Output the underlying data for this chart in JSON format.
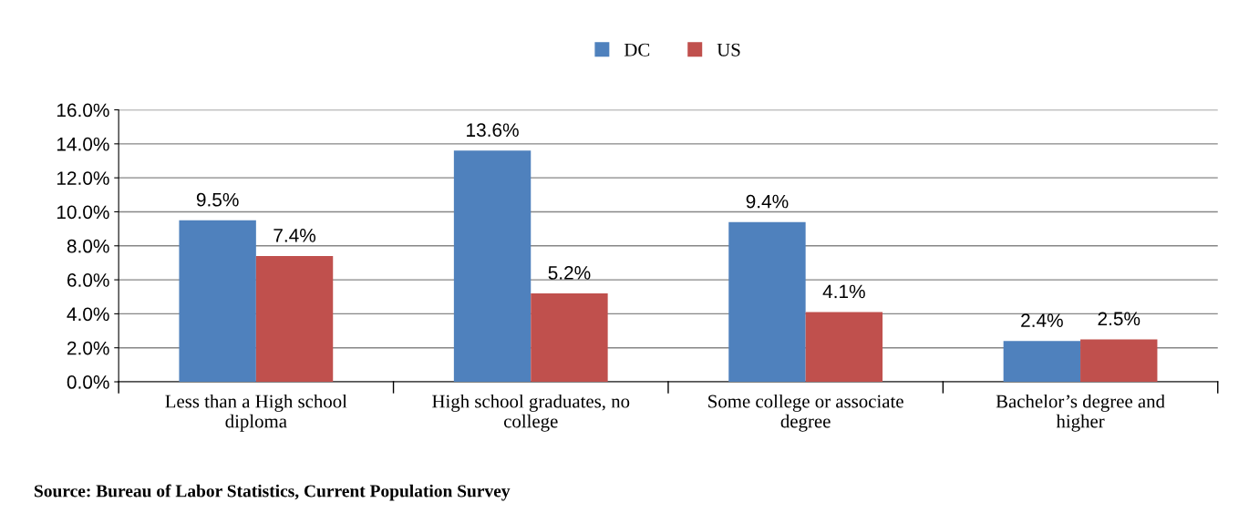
{
  "chart_data": {
    "type": "bar",
    "categories": [
      "Less than a High school diploma",
      "High school graduates, no college",
      "Some college or associate degree",
      "Bachelor’s degree and higher"
    ],
    "series": [
      {
        "name": "DC",
        "color": "#4f81bd",
        "values": [
          9.5,
          13.6,
          9.4,
          2.4
        ],
        "value_labels": [
          "9.5%",
          "13.6%",
          "9.4%",
          "2.4%"
        ]
      },
      {
        "name": "US",
        "color": "#c0504d",
        "values": [
          7.4,
          5.2,
          4.1,
          2.5
        ],
        "value_labels": [
          "7.4%",
          "5.2%",
          "4.1%",
          "2.5%"
        ]
      }
    ],
    "ylim": [
      0,
      16
    ],
    "yticks": [
      {
        "value": 0,
        "label": "0.0%"
      },
      {
        "value": 2,
        "label": "2.0%"
      },
      {
        "value": 4,
        "label": "4.0%"
      },
      {
        "value": 6,
        "label": "6.0%"
      },
      {
        "value": 8,
        "label": "8.0%"
      },
      {
        "value": 10,
        "label": "10.0%"
      },
      {
        "value": 12,
        "label": "12.0%"
      },
      {
        "value": 14,
        "label": "14.0%"
      },
      {
        "value": 16,
        "label": "16.0%"
      }
    ],
    "grid": "y",
    "legend": "top",
    "annotations": [
      "Source: Bureau of Labor Statistics, Current Population Survey"
    ]
  }
}
